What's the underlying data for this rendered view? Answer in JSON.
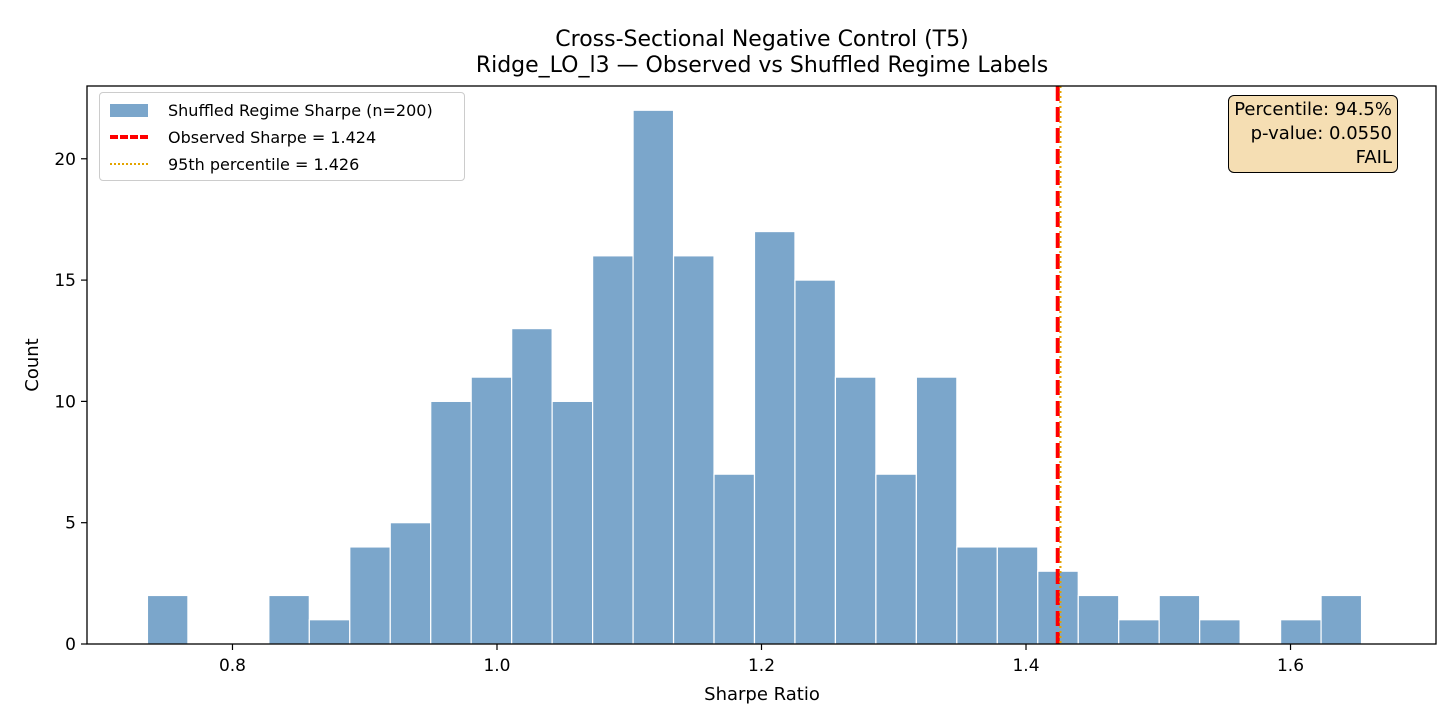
{
  "colors": {
    "bar_fill": "#7ba6cb",
    "bar_edge": "#ffffff",
    "observed_line": "#ff0000",
    "percentile_line": "#e3a400",
    "stats_box_bg": "#f5deb3"
  },
  "stats_box": {
    "percentile_text": "Percentile: 94.5%",
    "pvalue_text": "p-value: 0.0550",
    "verdict_text": "FAIL"
  },
  "chart_data": {
    "type": "bar",
    "title": "Cross-Sectional Negative Control (T5)",
    "subtitle": "Ridge_LO_l3 — Observed vs Shuffled Regime Labels",
    "xlabel": "Sharpe Ratio",
    "ylabel": "Count",
    "xlim": [
      0.69,
      1.71
    ],
    "ylim": [
      0,
      23
    ],
    "xticks": [
      0.8,
      1.0,
      1.2,
      1.4,
      1.6
    ],
    "xtick_labels": [
      "0.8",
      "1.0",
      "1.2",
      "1.4",
      "1.6"
    ],
    "yticks": [
      0,
      5,
      10,
      15,
      20
    ],
    "ytick_labels": [
      "0",
      "5",
      "10",
      "15",
      "20"
    ],
    "grid": false,
    "legend_placement": "upper left",
    "bin_width": 0.0306,
    "bin_starts": [
      0.7357,
      0.7663,
      0.7969,
      0.8275,
      0.8581,
      0.8887,
      0.9193,
      0.9499,
      0.9805,
      1.0111,
      1.0417,
      1.0723,
      1.1029,
      1.1335,
      1.1641,
      1.1947,
      1.2253,
      1.2559,
      1.2865,
      1.3171,
      1.3477,
      1.3783,
      1.4089,
      1.4395,
      1.4701,
      1.5007,
      1.5313,
      1.5619,
      1.5925,
      1.6231
    ],
    "counts": [
      2,
      0,
      0,
      2,
      1,
      4,
      5,
      10,
      11,
      13,
      10,
      16,
      22,
      16,
      7,
      17,
      15,
      11,
      7,
      11,
      4,
      4,
      3,
      2,
      1,
      2,
      1,
      0,
      1,
      2
    ],
    "legend": [
      {
        "label": "Shuffled Regime Sharpe (n=200)",
        "style": "patch"
      },
      {
        "label": "Observed Sharpe = 1.424",
        "style": "dashed"
      },
      {
        "label": "95th percentile = 1.426",
        "style": "dotted"
      }
    ],
    "vlines": [
      {
        "name": "Observed Sharpe",
        "x": 1.424,
        "style": "dashed"
      },
      {
        "name": "95th percentile",
        "x": 1.426,
        "style": "dotted"
      }
    ]
  }
}
